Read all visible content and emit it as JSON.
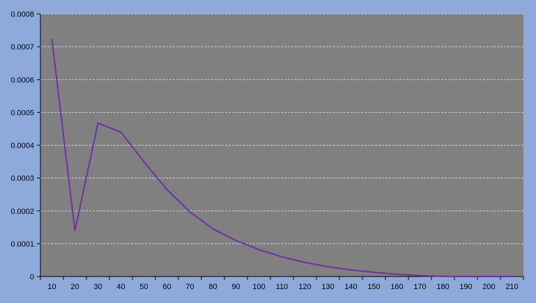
{
  "colors": {
    "background": "#8eaadb",
    "plot_area": "#808080",
    "gridline": "#c9d6ee",
    "axis": "#000000",
    "series_line": "#7030a0"
  },
  "chart_data": {
    "type": "line",
    "title": "",
    "xlabel": "",
    "ylabel": "",
    "grid": true,
    "legend": "none",
    "ylim": [
      0,
      0.0008
    ],
    "y_ticks": [
      "0",
      "0.0001",
      "0.0002",
      "0.0003",
      "0.0004",
      "0.0005",
      "0.0006",
      "0.0007",
      "0.0008"
    ],
    "categories": [
      "10",
      "20",
      "30",
      "40",
      "50",
      "60",
      "70",
      "80",
      "90",
      "100",
      "110",
      "120",
      "130",
      "140",
      "150",
      "160",
      "170",
      "180",
      "190",
      "200",
      "210"
    ],
    "series": [
      {
        "values": [
          0.000722,
          0.00014,
          0.000467,
          0.00044,
          0.00035,
          0.000265,
          0.000197,
          0.000145,
          0.00011,
          8.2e-05,
          6e-05,
          4.3e-05,
          3e-05,
          2e-05,
          1.3e-05,
          7e-06,
          3e-06,
          5e-07,
          0.0,
          0.0,
          0.0
        ]
      }
    ]
  }
}
